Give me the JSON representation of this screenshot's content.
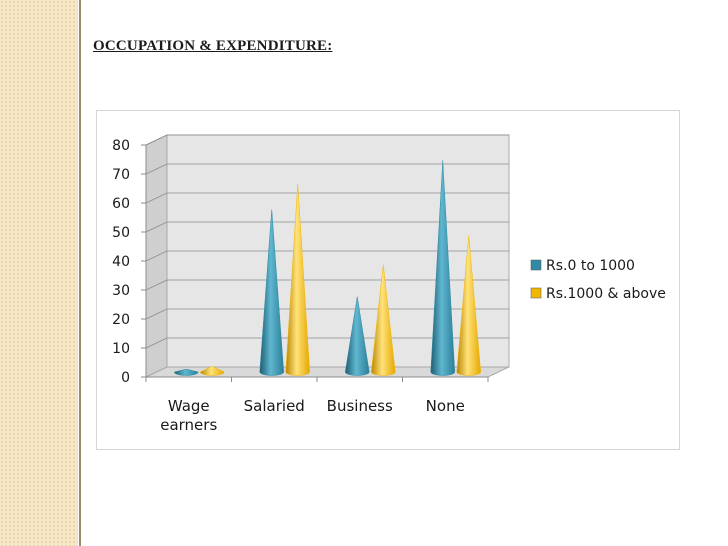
{
  "slide": {
    "title": "OCCUPATION & EXPENDITURE:"
  },
  "colors": {
    "series1": "#2f8aa5",
    "series2": "#f2b705",
    "plot_wall": "#e6e6e6",
    "side_band": "#f6e7c9"
  },
  "chart_data": {
    "type": "bar",
    "style": "3d-cone",
    "categories": [
      "Wage earners",
      "Salaried",
      "Business",
      "None"
    ],
    "category_labels": [
      [
        "Wage",
        "earners"
      ],
      [
        "Salaried"
      ],
      [
        "Business"
      ],
      [
        "None"
      ]
    ],
    "series": [
      {
        "name": "Rs.0 to 1000",
        "values": [
          1,
          56,
          26,
          73
        ]
      },
      {
        "name": "Rs.1000 & above",
        "values": [
          2,
          65,
          37,
          47
        ]
      }
    ],
    "ylim": [
      0,
      80
    ],
    "yticks": [
      0,
      10,
      20,
      30,
      40,
      50,
      60,
      70,
      80
    ],
    "grid": true,
    "legend": "right",
    "title": "",
    "xlabel": "",
    "ylabel": ""
  }
}
